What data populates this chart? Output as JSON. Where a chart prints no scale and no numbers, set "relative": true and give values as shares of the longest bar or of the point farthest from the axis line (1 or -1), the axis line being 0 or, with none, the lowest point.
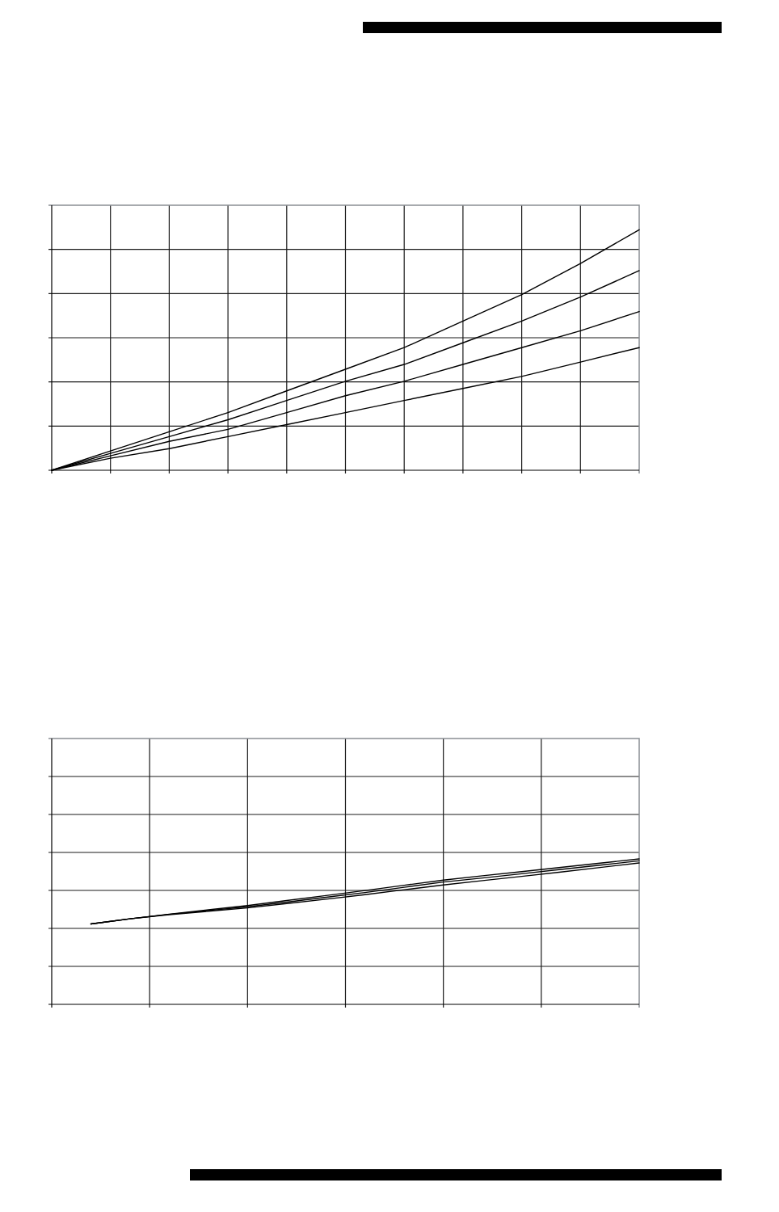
{
  "chart_data": [
    {
      "type": "line",
      "relative": true,
      "categories": [
        null,
        null,
        null,
        null,
        null,
        null,
        null,
        null,
        null,
        null,
        null
      ],
      "grid": true,
      "series": [
        {
          "color": "#000000",
          "values": [
            0,
            0.08,
            0.16,
            0.24,
            0.33,
            0.42,
            0.51,
            0.62,
            0.73,
            0.86,
            1
          ]
        },
        {
          "color": "#000000",
          "values": [
            0,
            0.07,
            0.14,
            0.21,
            0.29,
            0.37,
            0.44,
            0.53,
            0.62,
            0.72,
            0.83
          ]
        },
        {
          "color": "#000000",
          "values": [
            0,
            0.06,
            0.12,
            0.17,
            0.24,
            0.31,
            0.37,
            0.44,
            0.51,
            0.58,
            0.66
          ]
        },
        {
          "color": "#000000",
          "values": [
            0,
            0.05,
            0.09,
            0.14,
            0.19,
            0.24,
            0.29,
            0.34,
            0.39,
            0.45,
            0.51
          ]
        }
      ]
    },
    {
      "type": "line",
      "relative": true,
      "categories": [
        null,
        null,
        null,
        null,
        null,
        null,
        null,
        null,
        null,
        null,
        null,
        null,
        null,
        null,
        null,
        null
      ],
      "grid": true,
      "series": [
        {
          "color": "#000000",
          "values": [
            null,
            0.553,
            0.588,
            0.62,
            0.65,
            0.679,
            0.714,
            0.748,
            0.783,
            0.819,
            0.854,
            0.884,
            0.913,
            0.942,
            0.971,
            1
          ]
        },
        {
          "color": "#000000",
          "values": [
            null,
            0.553,
            0.588,
            0.619,
            0.645,
            0.671,
            0.703,
            0.736,
            0.769,
            0.805,
            0.841,
            0.869,
            0.898,
            0.928,
            0.957,
            0.987
          ]
        },
        {
          "color": "#000000",
          "values": [
            null,
            0.553,
            0.588,
            0.617,
            0.64,
            0.663,
            0.693,
            0.723,
            0.754,
            0.788,
            0.821,
            0.851,
            0.88,
            0.91,
            0.941,
            0.972
          ]
        }
      ]
    }
  ]
}
